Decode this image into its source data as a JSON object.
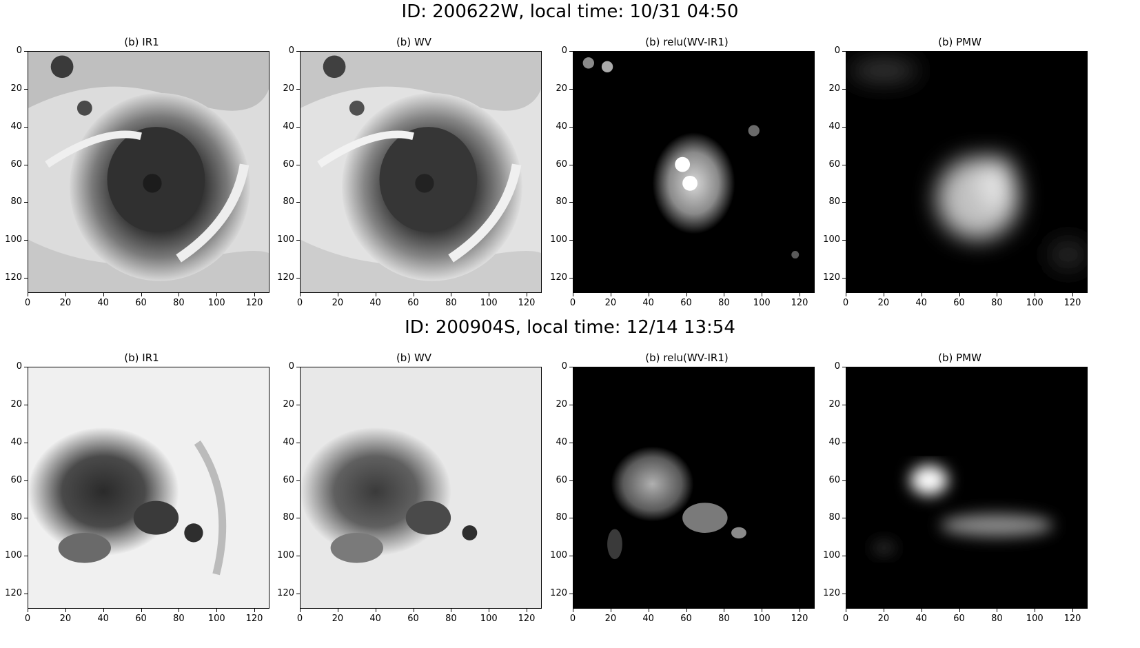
{
  "rows": [
    {
      "title": "ID: 200622W, local time: 10/31 04:50",
      "panels": [
        {
          "title": "(b) IR1",
          "image": "ir1-typhoon-eye-grayscale"
        },
        {
          "title": "(b) WV",
          "image": "wv-typhoon-eye-grayscale"
        },
        {
          "title": "(b) relu(WV-IR1)",
          "image": "relu-diff-bright-core-on-black"
        },
        {
          "title": "(b) PMW",
          "image": "pmw-blurred-bright-core-on-black"
        }
      ]
    },
    {
      "title": "ID: 200904S, local time: 12/14 13:54",
      "panels": [
        {
          "title": "(b) IR1",
          "image": "ir1-storm-dark-blob-grayscale"
        },
        {
          "title": "(b) WV",
          "image": "wv-storm-dark-blob-grayscale"
        },
        {
          "title": "(b) relu(WV-IR1)",
          "image": "relu-diff-speckled-blob-on-black"
        },
        {
          "title": "(b) PMW",
          "image": "pmw-blurred-band-on-black"
        }
      ]
    }
  ],
  "axis_ticks": [
    "0",
    "20",
    "40",
    "60",
    "80",
    "100",
    "120"
  ],
  "axis_range": [
    0,
    128
  ]
}
